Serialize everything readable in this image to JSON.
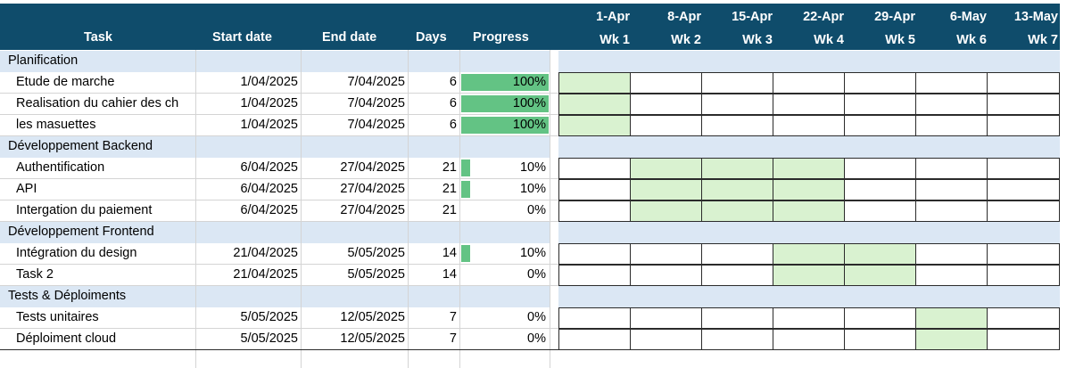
{
  "headers": {
    "task": "Task",
    "start": "Start date",
    "end": "End date",
    "days": "Days",
    "progress": "Progress"
  },
  "weeks": [
    {
      "date": "1-Apr",
      "wk": "Wk 1"
    },
    {
      "date": "8-Apr",
      "wk": "Wk 2"
    },
    {
      "date": "15-Apr",
      "wk": "Wk 3"
    },
    {
      "date": "22-Apr",
      "wk": "Wk 4"
    },
    {
      "date": "29-Apr",
      "wk": "Wk 5"
    },
    {
      "date": "6-May",
      "wk": "Wk 6"
    },
    {
      "date": "13-May",
      "wk": "Wk 7"
    }
  ],
  "sections": [
    {
      "name": "Planification",
      "tasks": [
        {
          "name": "Etude de marche",
          "start": "1/04/2025",
          "end": "7/04/2025",
          "days": "6",
          "progress": "100%",
          "progress_value": 100,
          "weeks": [
            1,
            0,
            0,
            0,
            0,
            0,
            0
          ]
        },
        {
          "name": "Realisation du cahier des ch",
          "start": "1/04/2025",
          "end": "7/04/2025",
          "days": "6",
          "progress": "100%",
          "progress_value": 100,
          "weeks": [
            1,
            0,
            0,
            0,
            0,
            0,
            0
          ]
        },
        {
          "name": "les masuettes",
          "start": "1/04/2025",
          "end": "7/04/2025",
          "days": "6",
          "progress": "100%",
          "progress_value": 100,
          "weeks": [
            1,
            0,
            0,
            0,
            0,
            0,
            0
          ]
        }
      ]
    },
    {
      "name": "Développement Backend",
      "tasks": [
        {
          "name": "Authentification",
          "start": "6/04/2025",
          "end": "27/04/2025",
          "days": "21",
          "progress": "10%",
          "progress_value": 10,
          "weeks": [
            0,
            1,
            1,
            1,
            0,
            0,
            0
          ]
        },
        {
          "name": "API",
          "start": "6/04/2025",
          "end": "27/04/2025",
          "days": "21",
          "progress": "10%",
          "progress_value": 10,
          "weeks": [
            0,
            1,
            1,
            1,
            0,
            0,
            0
          ]
        },
        {
          "name": "Intergation du paiement",
          "start": "6/04/2025",
          "end": "27/04/2025",
          "days": "21",
          "progress": "0%",
          "progress_value": 0,
          "weeks": [
            0,
            1,
            1,
            1,
            0,
            0,
            0
          ]
        }
      ]
    },
    {
      "name": "Développement Frontend",
      "tasks": [
        {
          "name": "Intégration du design",
          "start": "21/04/2025",
          "end": "5/05/2025",
          "days": "14",
          "progress": "10%",
          "progress_value": 10,
          "weeks": [
            0,
            0,
            0,
            1,
            1,
            0,
            0
          ]
        },
        {
          "name": "Task 2",
          "start": "21/04/2025",
          "end": "5/05/2025",
          "days": "14",
          "progress": "0%",
          "progress_value": 0,
          "weeks": [
            0,
            0,
            0,
            1,
            1,
            0,
            0
          ]
        }
      ]
    },
    {
      "name": "Tests & Déploiments",
      "tasks": [
        {
          "name": "Tests unitaires",
          "start": "5/05/2025",
          "end": "12/05/2025",
          "days": "7",
          "progress": "0%",
          "progress_value": 0,
          "weeks": [
            0,
            0,
            0,
            0,
            0,
            1,
            0
          ]
        },
        {
          "name": "Déploiment cloud",
          "start": "5/05/2025",
          "end": "12/05/2025",
          "days": "7",
          "progress": "0%",
          "progress_value": 0,
          "weeks": [
            0,
            0,
            0,
            0,
            0,
            1,
            0
          ]
        }
      ]
    }
  ]
}
